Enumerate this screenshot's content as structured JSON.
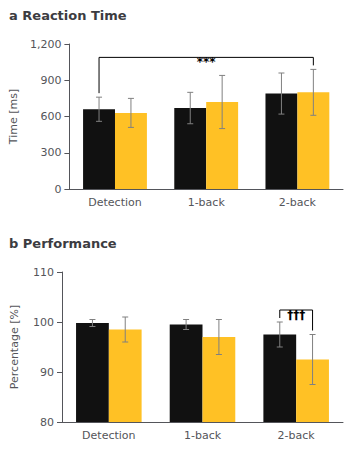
{
  "chart_data": [
    {
      "type": "bar",
      "title": "a Reaction Time",
      "categories": [
        "Detection",
        "1-back",
        "2-back"
      ],
      "series": [
        {
          "color": "#111111",
          "values": [
            660,
            670,
            790
          ],
          "errors": [
            100,
            130,
            170
          ]
        },
        {
          "color": "#FFC125",
          "values": [
            630,
            720,
            800
          ],
          "errors": [
            120,
            220,
            190
          ]
        }
      ],
      "ylabel": "Time [ms]",
      "ylim": [
        0,
        1200
      ],
      "yticks": [
        0,
        300,
        600,
        900,
        1200
      ],
      "grid": false,
      "annotations": [
        {
          "text": "***",
          "categories": [
            "Detection",
            "2-back"
          ],
          "color": "black"
        }
      ]
    },
    {
      "type": "bar",
      "title": "b Performance",
      "categories": [
        "Detection",
        "1-back",
        "2-back"
      ],
      "series": [
        {
          "color": "#111111",
          "values": [
            99.8,
            99.5,
            97.5
          ],
          "errors": [
            0.7,
            1.0,
            2.5
          ]
        },
        {
          "color": "#FFC125",
          "values": [
            98.5,
            97.0,
            92.5
          ],
          "errors": [
            2.5,
            3.5,
            5.0
          ]
        }
      ],
      "ylabel": "Percentage [%]",
      "ylim": [
        80,
        110
      ],
      "yticks": [
        80,
        90,
        100,
        110
      ],
      "grid": false,
      "annotations": [
        {
          "text": "†††",
          "categories": [
            "2-back",
            "2-back"
          ],
          "color": "black"
        }
      ]
    }
  ]
}
